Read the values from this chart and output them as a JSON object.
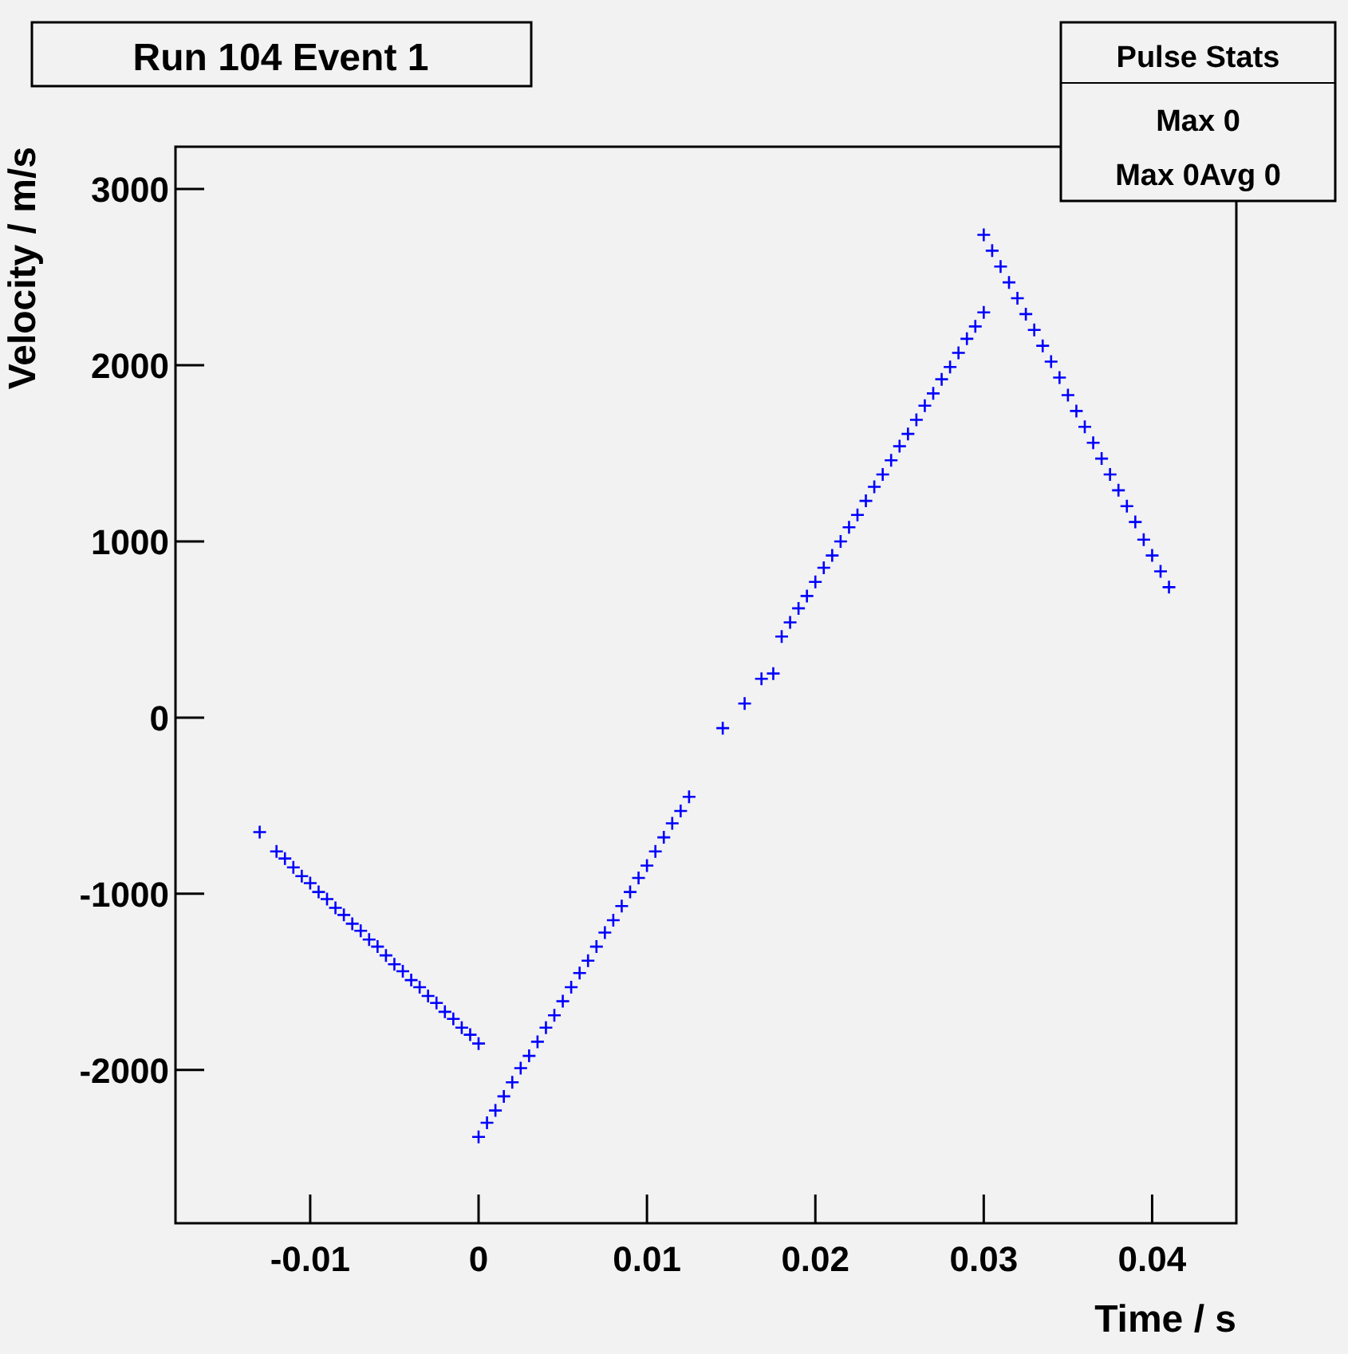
{
  "chart_data": {
    "type": "scatter",
    "title": "Run 104 Event 1",
    "xlabel": "Time / s",
    "ylabel": "Velocity / m/s",
    "annotations": [
      "Pulse Stats",
      "Max 0",
      "Max 0Avg 0"
    ],
    "xlim": [
      -0.018,
      0.045
    ],
    "ylim": [
      -2870,
      3240
    ],
    "xticks": [
      {
        "value": -0.01,
        "label": "-0.01"
      },
      0,
      0.01,
      0.02,
      0.03,
      0.04
    ],
    "yticks": [
      -2000,
      -1000,
      0,
      1000,
      2000,
      3000
    ],
    "grid": false,
    "marker": "cross",
    "series": [
      {
        "color": "#0000ff",
        "x": [
          -0.013,
          -0.012,
          -0.0115,
          -0.011,
          -0.0105,
          -0.01,
          -0.0095,
          -0.009,
          -0.0085,
          -0.008,
          -0.0075,
          -0.007,
          -0.0065,
          -0.006,
          -0.0055,
          -0.005,
          -0.0045,
          -0.004,
          -0.0035,
          -0.003,
          -0.0025,
          -0.002,
          -0.0015,
          -0.001,
          -0.0005,
          0
        ],
        "values": [
          -650,
          -760,
          -800,
          -850,
          -900,
          -940,
          -990,
          -1030,
          -1080,
          -1120,
          -1170,
          -1210,
          -1260,
          -1300,
          -1350,
          -1400,
          -1440,
          -1490,
          -1530,
          -1580,
          -1620,
          -1670,
          -1710,
          -1760,
          -1800,
          -1850
        ]
      },
      {
        "color": "#0000ff",
        "x": [
          0,
          0.0005,
          0.001,
          0.0015,
          0.002,
          0.0025,
          0.003,
          0.0035,
          0.004,
          0.0045,
          0.005,
          0.0055,
          0.006,
          0.0065,
          0.007,
          0.0075,
          0.008,
          0.0085,
          0.009,
          0.0095,
          0.01,
          0.0105,
          0.011,
          0.0115,
          0.012,
          0.0125,
          0.0145,
          0.0158,
          0.0168,
          0.0175
        ],
        "values": [
          -2380,
          -2300,
          -2230,
          -2150,
          -2070,
          -1990,
          -1920,
          -1840,
          -1760,
          -1690,
          -1610,
          -1530,
          -1450,
          -1380,
          -1300,
          -1220,
          -1150,
          -1070,
          -990,
          -910,
          -840,
          -760,
          -680,
          -600,
          -530,
          -450,
          -60,
          80,
          220,
          250
        ]
      },
      {
        "color": "#0000ff",
        "x": [
          0.018,
          0.0185,
          0.019,
          0.0195,
          0.02,
          0.0205,
          0.021,
          0.0215,
          0.022,
          0.0225,
          0.023,
          0.0235,
          0.024,
          0.0245,
          0.025,
          0.0255,
          0.026,
          0.0265,
          0.027,
          0.0275,
          0.028,
          0.0285,
          0.029,
          0.0295,
          0.03
        ],
        "values": [
          460,
          540,
          620,
          690,
          770,
          850,
          920,
          1000,
          1080,
          1150,
          1230,
          1310,
          1380,
          1460,
          1540,
          1610,
          1690,
          1770,
          1840,
          1920,
          1990,
          2070,
          2150,
          2220,
          2300
        ]
      },
      {
        "color": "#0000ff",
        "x": [
          0.03,
          0.0305,
          0.031,
          0.0315,
          0.032,
          0.0325,
          0.033,
          0.0335,
          0.034,
          0.0345,
          0.035,
          0.0355,
          0.036,
          0.0365,
          0.037,
          0.0375,
          0.038,
          0.0385,
          0.039,
          0.0395,
          0.04,
          0.0405,
          0.041
        ],
        "values": [
          2740,
          2650,
          2560,
          2470,
          2380,
          2290,
          2200,
          2110,
          2020,
          1930,
          1830,
          1740,
          1650,
          1560,
          1470,
          1380,
          1290,
          1200,
          1110,
          1010,
          920,
          830,
          740
        ]
      }
    ]
  }
}
